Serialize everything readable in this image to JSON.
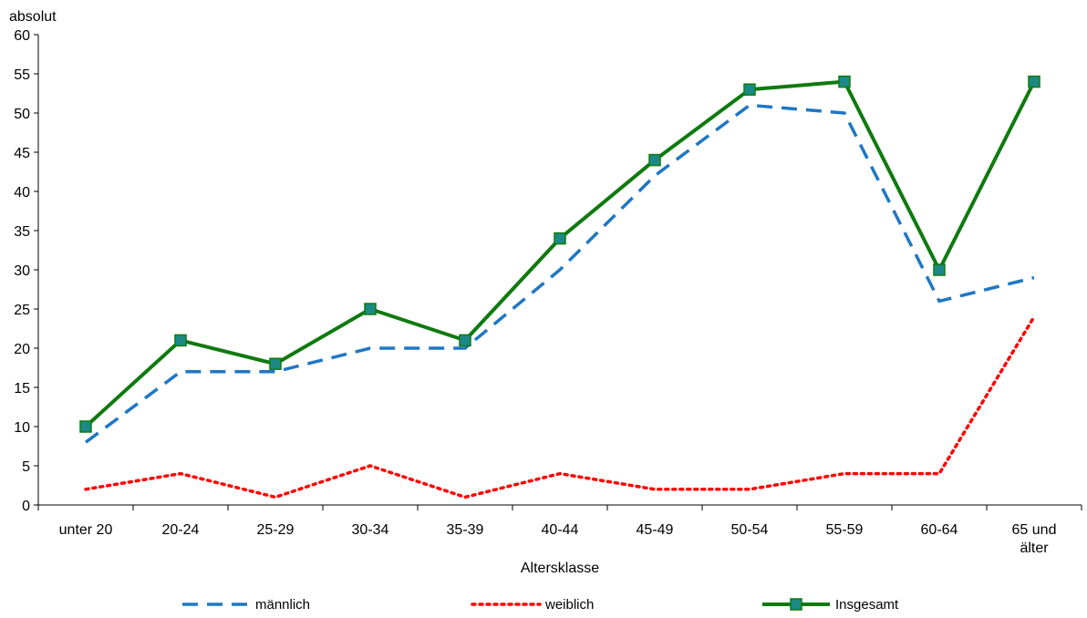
{
  "chart_data": {
    "type": "line",
    "ylabel": "absolut",
    "xlabel": "Altersklasse",
    "ylim": [
      0,
      60
    ],
    "yticks": [
      0,
      5,
      10,
      15,
      20,
      25,
      30,
      35,
      40,
      45,
      50,
      55,
      60
    ],
    "categories": [
      "unter 20",
      "20-24",
      "25-29",
      "30-34",
      "35-39",
      "40-44",
      "45-49",
      "50-54",
      "55-59",
      "60-64",
      "65 und älter"
    ],
    "category_lines": [
      [
        "unter 20"
      ],
      [
        "20-24"
      ],
      [
        "25-29"
      ],
      [
        "30-34"
      ],
      [
        "35-39"
      ],
      [
        "40-44"
      ],
      [
        "45-49"
      ],
      [
        "50-54"
      ],
      [
        "55-59"
      ],
      [
        "60-64"
      ],
      [
        "65 und",
        "älter"
      ]
    ],
    "series": [
      {
        "name": "männlich",
        "values": [
          8,
          17,
          17,
          20,
          20,
          30,
          42,
          51,
          50,
          26,
          29
        ],
        "color": "#1f77c4",
        "style": "dashed"
      },
      {
        "name": "weiblich",
        "values": [
          2,
          4,
          1,
          5,
          1,
          4,
          2,
          2,
          4,
          4,
          24
        ],
        "color": "#ff0000",
        "style": "dotted"
      },
      {
        "name": "Insgesamt",
        "values": [
          10,
          21,
          18,
          25,
          21,
          34,
          44,
          53,
          54,
          30,
          54
        ],
        "color": "#0f7a0f",
        "style": "solid",
        "marker": "square",
        "marker_color": "#1b8a86"
      }
    ],
    "grid": false,
    "legend_position": "bottom"
  }
}
